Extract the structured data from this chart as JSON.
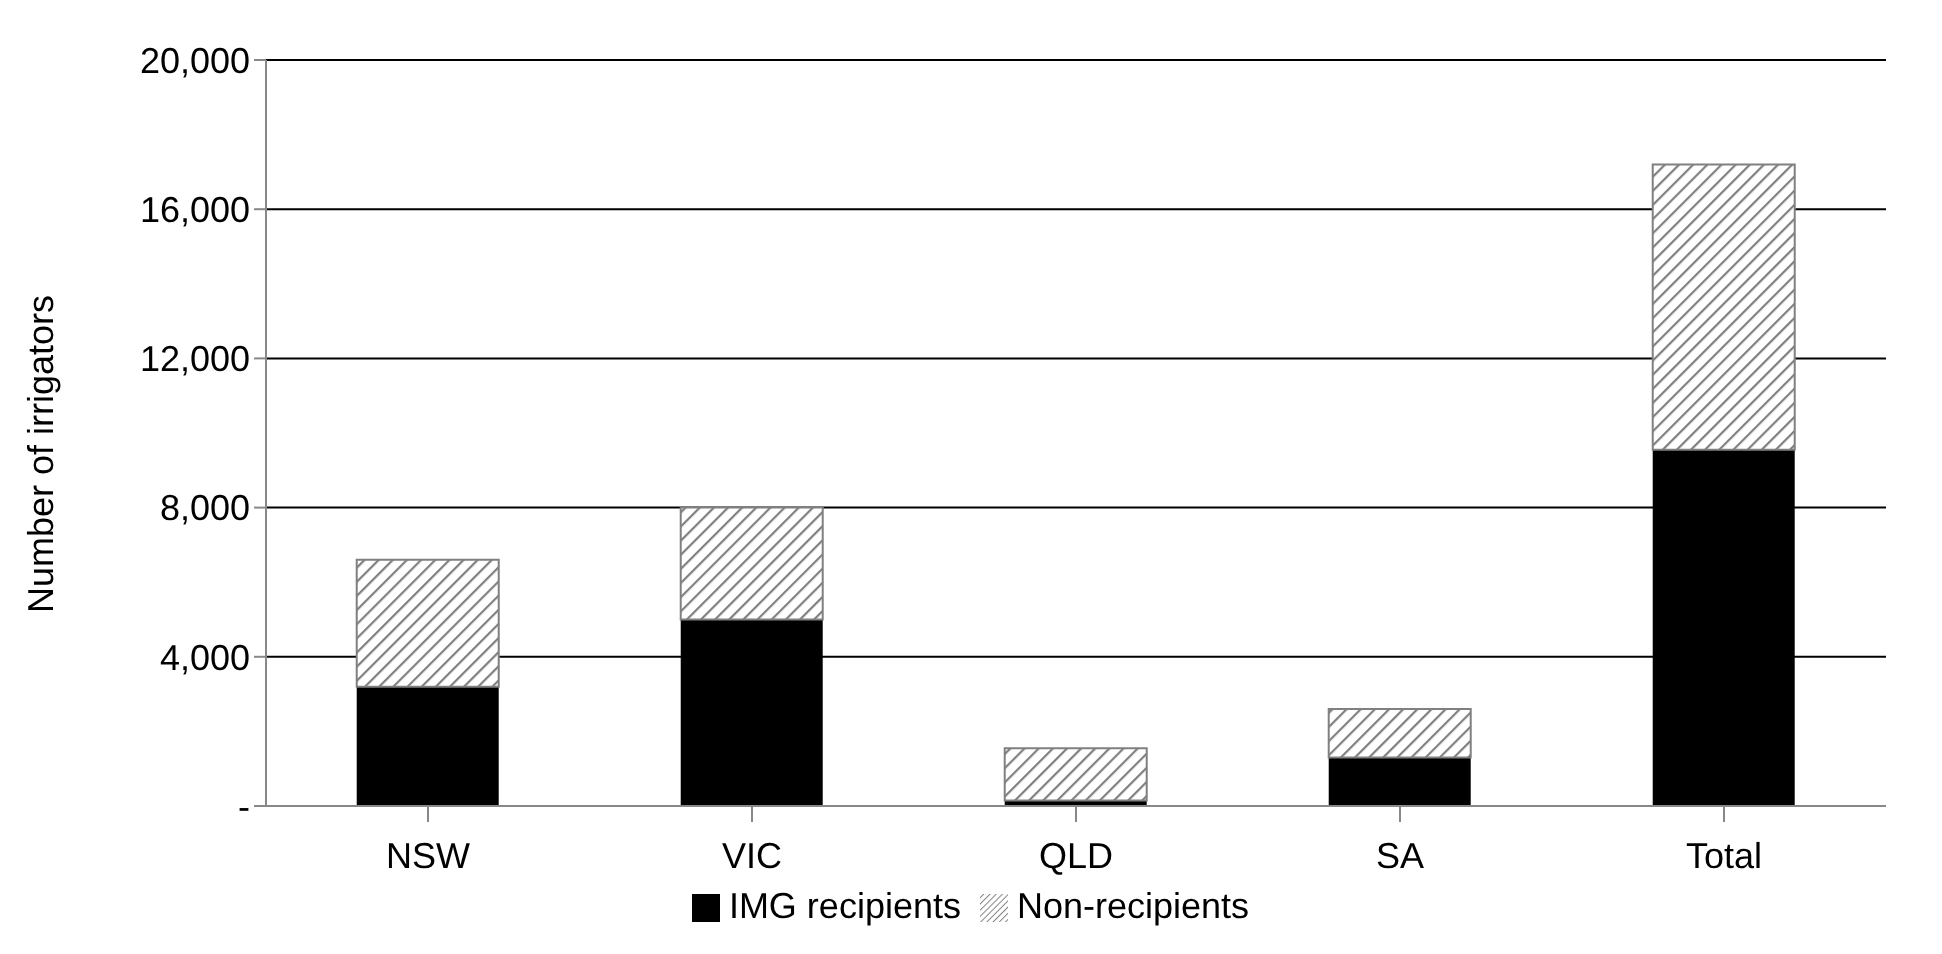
{
  "chart_data": {
    "type": "bar",
    "stacked": true,
    "ylabel": "Number of irrigators",
    "categories": [
      "NSW",
      "VIC",
      "QLD",
      "SA",
      "Total"
    ],
    "series": [
      {
        "name": "IMG recipients",
        "color": "#000000",
        "values": [
          3200,
          5000,
          150,
          1300,
          9550
        ]
      },
      {
        "name": "Non-recipients",
        "color": "#808080",
        "values": [
          3400,
          3000,
          1400,
          1300,
          7650
        ]
      }
    ],
    "ylim": [
      0,
      20000
    ],
    "yticks": [
      {
        "value": 0,
        "label": "-"
      },
      {
        "value": 4000,
        "label": "4,000"
      },
      {
        "value": 8000,
        "label": "8,000"
      },
      {
        "value": 12000,
        "label": "12,000"
      },
      {
        "value": 16000,
        "label": "16,000"
      },
      {
        "value": 20000,
        "label": "20,000"
      }
    ],
    "grid": "y",
    "legend": "bottom"
  }
}
